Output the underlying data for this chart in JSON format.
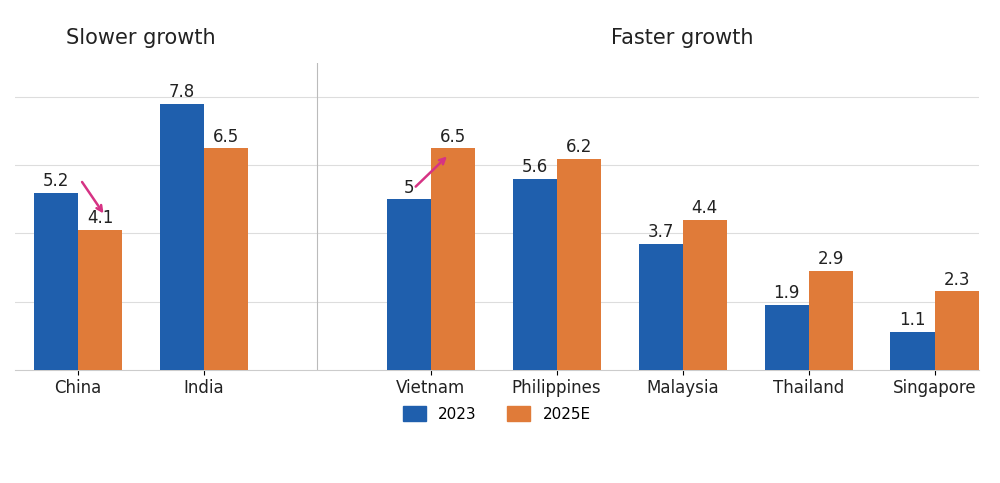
{
  "categories": [
    "China",
    "India",
    "Vietnam",
    "Philippines",
    "Malaysia",
    "Thailand",
    "Singapore"
  ],
  "values_2023": [
    5.2,
    7.8,
    5.0,
    5.6,
    3.7,
    1.9,
    1.1
  ],
  "values_2025E": [
    4.1,
    6.5,
    6.5,
    6.2,
    4.4,
    2.9,
    2.3
  ],
  "color_2023": "#1f5fad",
  "color_2025E": "#e07b39",
  "bar_width": 0.35,
  "ylim": [
    0,
    9.0
  ],
  "slower_growth_label": "Slower growth",
  "faster_growth_label": "Faster growth",
  "legend_label_2023": "2023",
  "legend_label_2025E": "2025E",
  "arrow_color": "#d63384",
  "bg_color": "#ffffff",
  "label_fontsize": 11,
  "category_fontsize": 12,
  "annotation_fontsize": 12,
  "section_label_fontsize": 15,
  "positions": [
    0,
    1,
    2.8,
    3.8,
    4.8,
    5.8,
    6.8
  ],
  "x_min": -0.5,
  "x_max": 7.15
}
